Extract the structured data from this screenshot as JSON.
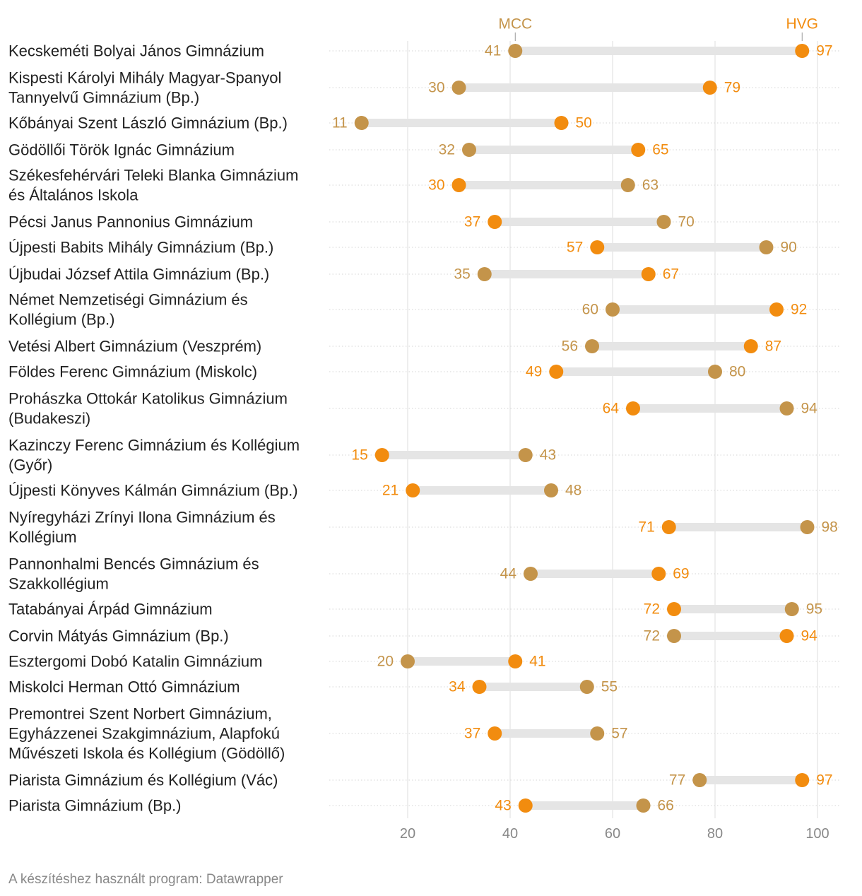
{
  "colors": {
    "mcc": "#C4944A",
    "hvg": "#F28C0F",
    "connector": "#E5E5E5",
    "grid": "#DDDDDD",
    "row_rule": "#D6D6D6"
  },
  "footer": {
    "credit": "A készítéshez használt program: Datawrapper"
  },
  "chart_data": {
    "type": "dot-range",
    "series": [
      {
        "name": "MCC",
        "color": "#C4944A"
      },
      {
        "name": "HVG",
        "color": "#F28C0F"
      }
    ],
    "xlim": [
      5,
      100
    ],
    "xticks": [
      20,
      40,
      60,
      80,
      100
    ],
    "grid": true,
    "rows": [
      {
        "label": [
          "Kecskeméti Bolyai János Gimnázium"
        ],
        "mcc": 41,
        "hvg": 97
      },
      {
        "label": [
          "Kispesti Károlyi Mihály Magyar-Spanyol",
          "Tannyelvű Gimnázium (Bp.)"
        ],
        "mcc": 30,
        "hvg": 79
      },
      {
        "label": [
          "Kőbányai Szent László Gimnázium (Bp.)"
        ],
        "mcc": 11,
        "hvg": 50
      },
      {
        "label": [
          "Gödöllői Török Ignác Gimnázium"
        ],
        "mcc": 32,
        "hvg": 65
      },
      {
        "label": [
          "Székesfehérvári Teleki Blanka Gimnázium",
          "és Általános Iskola"
        ],
        "mcc": 63,
        "hvg": 30
      },
      {
        "label": [
          "Pécsi Janus Pannonius Gimnázium"
        ],
        "mcc": 70,
        "hvg": 37
      },
      {
        "label": [
          "Újpesti Babits Mihály Gimnázium (Bp.)"
        ],
        "mcc": 90,
        "hvg": 57
      },
      {
        "label": [
          "Újbudai József Attila Gimnázium (Bp.)"
        ],
        "mcc": 35,
        "hvg": 67
      },
      {
        "label": [
          "Német Nemzetiségi Gimnázium és",
          "Kollégium (Bp.)"
        ],
        "mcc": 60,
        "hvg": 92
      },
      {
        "label": [
          "Vetési Albert Gimnázium (Veszprém)"
        ],
        "mcc": 56,
        "hvg": 87
      },
      {
        "label": [
          "Földes Ferenc Gimnázium (Miskolc)"
        ],
        "mcc": 80,
        "hvg": 49
      },
      {
        "label": [
          "Prohászka Ottokár Katolikus Gimnázium",
          "(Budakeszi)"
        ],
        "mcc": 94,
        "hvg": 64
      },
      {
        "label": [
          "Kazinczy Ferenc Gimnázium és Kollégium",
          "(Győr)"
        ],
        "mcc": 43,
        "hvg": 15
      },
      {
        "label": [
          "Újpesti Könyves Kálmán Gimnázium (Bp.)"
        ],
        "mcc": 48,
        "hvg": 21
      },
      {
        "label": [
          "Nyíregyházi Zrínyi Ilona Gimnázium és",
          "Kollégium"
        ],
        "mcc": 98,
        "hvg": 71
      },
      {
        "label": [
          "Pannonhalmi Bencés Gimnázium és",
          "Szakkollégium"
        ],
        "mcc": 44,
        "hvg": 69
      },
      {
        "label": [
          "Tatabányai Árpád Gimnázium"
        ],
        "mcc": 95,
        "hvg": 72
      },
      {
        "label": [
          "Corvin Mátyás Gimnázium (Bp.)"
        ],
        "mcc": 72,
        "hvg": 94
      },
      {
        "label": [
          "Esztergomi Dobó Katalin Gimnázium"
        ],
        "mcc": 20,
        "hvg": 41
      },
      {
        "label": [
          "Miskolci Herman Ottó Gimnázium"
        ],
        "mcc": 55,
        "hvg": 34
      },
      {
        "label": [
          "Premontrei Szent Norbert Gimnázium,",
          "Egyházzenei Szakgimnázium, Alapfokú",
          "Művészeti Iskola és Kollégium (Gödöllő)"
        ],
        "mcc": 57,
        "hvg": 37
      },
      {
        "label": [
          "Piarista Gimnázium és Kollégium (Vác)"
        ],
        "mcc": 77,
        "hvg": 97
      },
      {
        "label": [
          "Piarista Gimnázium (Bp.)"
        ],
        "mcc": 66,
        "hvg": 43
      }
    ]
  }
}
